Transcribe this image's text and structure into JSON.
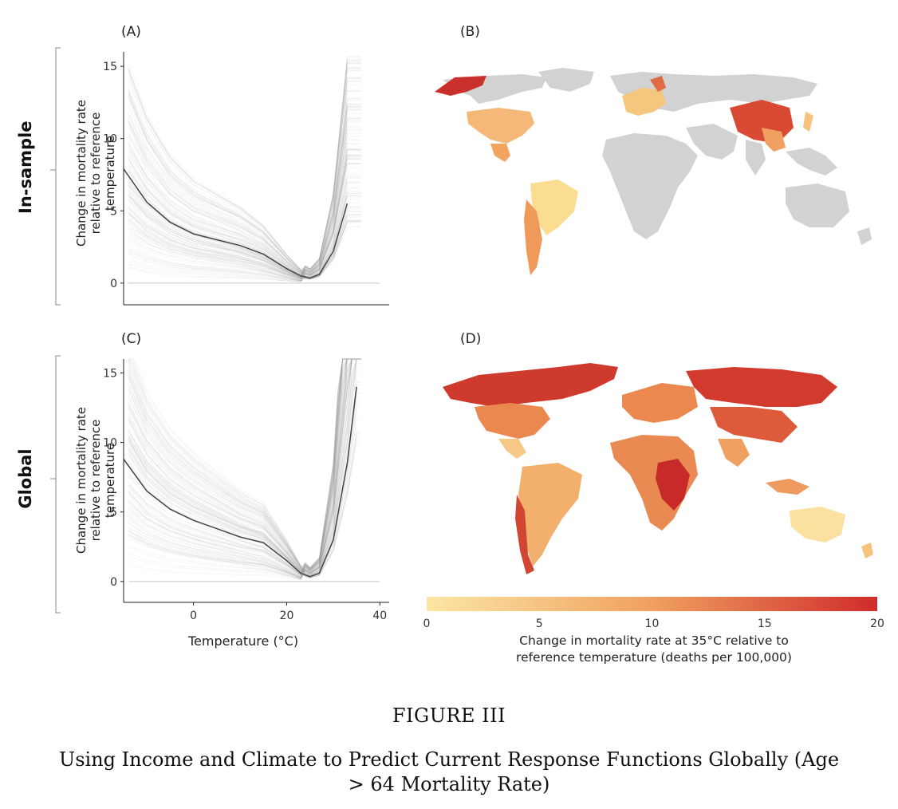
{
  "panels": {
    "a_label": "(A)",
    "b_label": "(B)",
    "c_label": "(C)",
    "d_label": "(D)"
  },
  "rows": {
    "top": "In-sample",
    "bottom": "Global"
  },
  "axes": {
    "ylabel": "Change in mortality rate relative to reference temperature",
    "xlabel": "Temperature (°C)"
  },
  "colorbar": {
    "label_line1": "Change in mortality rate at 35°C relative to",
    "label_line2": "reference temperature (deaths per 100,000)",
    "ticks": [
      "0",
      "5",
      "10",
      "15",
      "20"
    ],
    "range": [
      0,
      20
    ],
    "color_low": "#fbe6a4",
    "color_mid": "#f0a060",
    "color_high": "#d02b2b"
  },
  "map_colors": {
    "no_data": "#d2d2d2"
  },
  "figure": {
    "number": "FIGURE III",
    "caption_line1": "Using Income and Climate to Predict Current Response Functions Globally (Age",
    "caption_line2": "> 64 Mortality Rate)"
  },
  "chart_data": [
    {
      "panel": "(A)",
      "type": "line",
      "ylabel": "Change in mortality rate relative to reference temperature",
      "ylim": [
        -1.5,
        16
      ],
      "xlim": [
        -15,
        42
      ],
      "yticks": [
        "0",
        "5",
        "10",
        "15"
      ],
      "series": [
        {
          "x": [
            -15,
            -10,
            -5,
            0,
            5,
            10,
            15,
            20,
            23,
            25,
            27,
            30,
            33
          ],
          "y": [
            7.9,
            5.6,
            4.2,
            3.4,
            3.0,
            2.6,
            2.0,
            1.0,
            0.5,
            0.35,
            0.6,
            2.2,
            5.5
          ]
        }
      ]
    },
    {
      "panel": "(C)",
      "type": "line",
      "ylabel": "Change in mortality rate relative to reference temperature",
      "xlabel": "Temperature (°C)",
      "ylim": [
        -1.5,
        16
      ],
      "xlim": [
        -15,
        42
      ],
      "yticks": [
        "0",
        "5",
        "10",
        "15"
      ],
      "xticks": [
        "0",
        "20",
        "40"
      ],
      "series": [
        {
          "x": [
            -15,
            -10,
            -5,
            0,
            5,
            10,
            15,
            20,
            23,
            25,
            27,
            30,
            33,
            35
          ],
          "y": [
            8.8,
            6.5,
            5.2,
            4.4,
            3.8,
            3.2,
            2.8,
            1.5,
            0.6,
            0.35,
            0.6,
            3.0,
            8.5,
            14.0
          ]
        }
      ]
    }
  ]
}
